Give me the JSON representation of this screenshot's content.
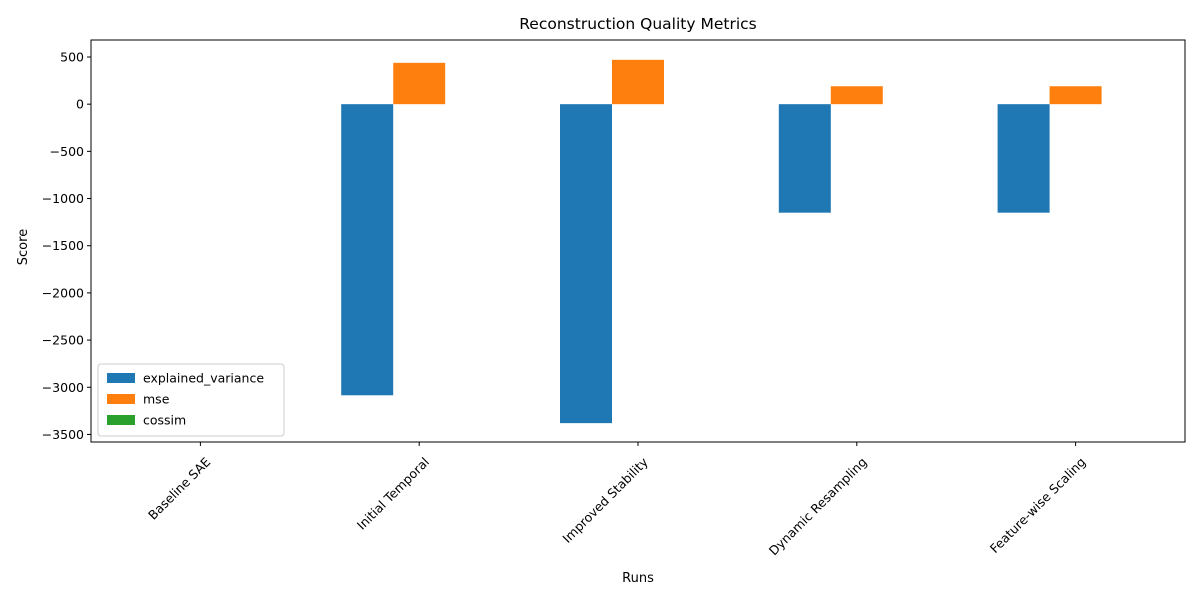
{
  "chart_data": {
    "type": "bar",
    "title": "Reconstruction Quality Metrics",
    "xlabel": "Runs",
    "ylabel": "Score",
    "categories": [
      "Baseline SAE",
      "Initial Temporal",
      "Improved Stability",
      "Dynamic Resampling",
      "Feature-wise Scaling"
    ],
    "series": [
      {
        "name": "explained_variance",
        "color": "#1f77b4",
        "values": [
          0,
          -3085,
          -3380,
          -1150,
          -1150
        ]
      },
      {
        "name": "mse",
        "color": "#ff7f0e",
        "values": [
          0,
          438,
          470,
          190,
          190
        ]
      },
      {
        "name": "cossim",
        "color": "#2ca02c",
        "values": [
          0,
          0,
          0,
          0,
          0
        ]
      }
    ],
    "ylim": [
      -3580,
      680
    ],
    "yticks": [
      500,
      0,
      -500,
      -1000,
      -1500,
      -2000,
      -2500,
      -3000,
      -3500
    ],
    "ytick_labels": [
      "500",
      "0",
      "−500",
      "−1000",
      "−1500",
      "−2000",
      "−2500",
      "−3000",
      "−3500"
    ],
    "grid": false,
    "legend_position": "lower-left"
  }
}
